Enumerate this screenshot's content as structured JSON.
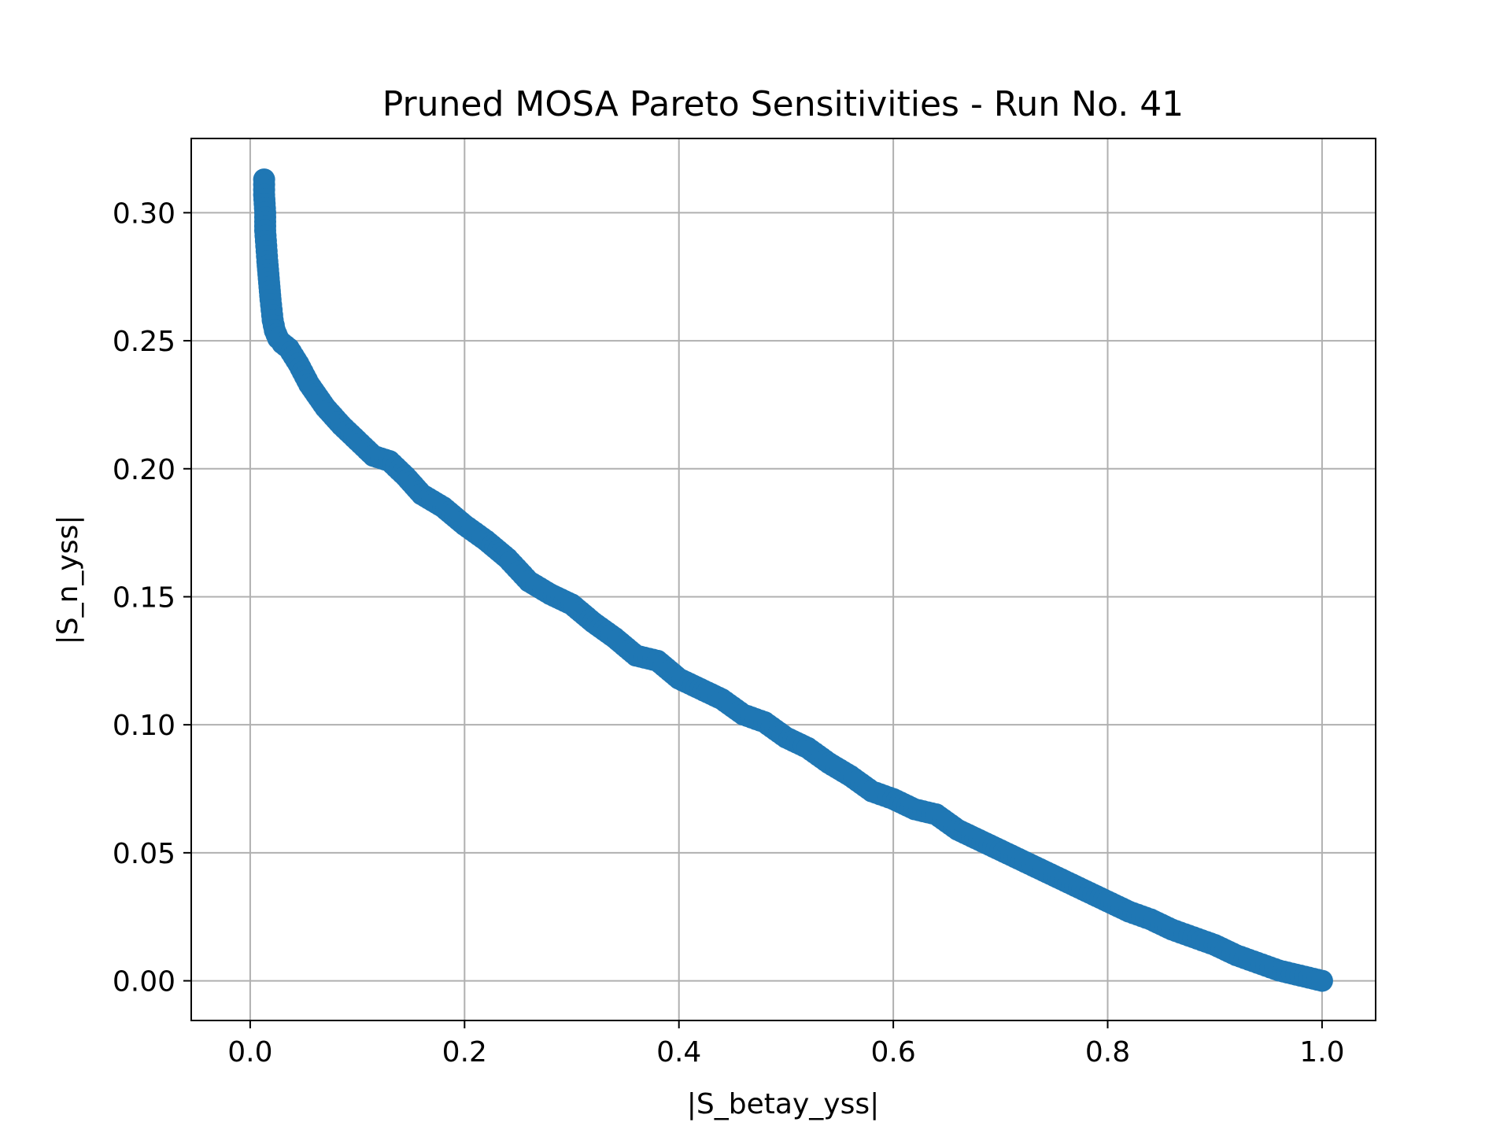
{
  "chart_data": {
    "type": "scatter",
    "title": "Pruned MOSA Pareto Sensitivities - Run No. 41",
    "xlabel": "|S_betay_yss|",
    "ylabel": "|S_n_yss|",
    "xlim": [
      -0.055,
      1.05
    ],
    "ylim": [
      -0.0155,
      0.329
    ],
    "xticks": [
      0.0,
      0.2,
      0.4,
      0.6,
      0.8,
      1.0
    ],
    "xtick_labels": [
      "0.0",
      "0.2",
      "0.4",
      "0.6",
      "0.8",
      "1.0"
    ],
    "yticks": [
      0.0,
      0.05,
      0.1,
      0.15,
      0.2,
      0.25,
      0.3
    ],
    "ytick_labels": [
      "0.00",
      "0.05",
      "0.10",
      "0.15",
      "0.20",
      "0.25",
      "0.30"
    ],
    "grid": true,
    "colors": {
      "series": "#1f77b4",
      "grid": "#b0b0b0",
      "axes": "#000000"
    },
    "series": [
      {
        "x": [
          0.013,
          0.013,
          0.014,
          0.014,
          0.015,
          0.016,
          0.017,
          0.018,
          0.019,
          0.02,
          0.021,
          0.023,
          0.026,
          0.03,
          0.036,
          0.045,
          0.055,
          0.07,
          0.085,
          0.1,
          0.115,
          0.13,
          0.145,
          0.16,
          0.18,
          0.2,
          0.22,
          0.24,
          0.26,
          0.28,
          0.3,
          0.32,
          0.34,
          0.36,
          0.38,
          0.4,
          0.42,
          0.44,
          0.46,
          0.48,
          0.5,
          0.52,
          0.54,
          0.56,
          0.58,
          0.6,
          0.62,
          0.64,
          0.66,
          0.68,
          0.7,
          0.72,
          0.74,
          0.76,
          0.78,
          0.8,
          0.82,
          0.84,
          0.86,
          0.88,
          0.9,
          0.92,
          0.94,
          0.96,
          0.98,
          1.0
        ],
        "y": [
          0.313,
          0.307,
          0.3,
          0.293,
          0.287,
          0.281,
          0.276,
          0.271,
          0.266,
          0.262,
          0.258,
          0.254,
          0.251,
          0.249,
          0.247,
          0.241,
          0.233,
          0.224,
          0.217,
          0.211,
          0.205,
          0.203,
          0.197,
          0.19,
          0.185,
          0.178,
          0.172,
          0.165,
          0.156,
          0.151,
          0.147,
          0.14,
          0.134,
          0.127,
          0.125,
          0.118,
          0.114,
          0.11,
          0.104,
          0.101,
          0.095,
          0.091,
          0.085,
          0.08,
          0.074,
          0.071,
          0.067,
          0.065,
          0.059,
          0.055,
          0.051,
          0.047,
          0.043,
          0.039,
          0.035,
          0.031,
          0.027,
          0.024,
          0.02,
          0.017,
          0.014,
          0.01,
          0.007,
          0.004,
          0.002,
          0.0
        ]
      }
    ]
  }
}
